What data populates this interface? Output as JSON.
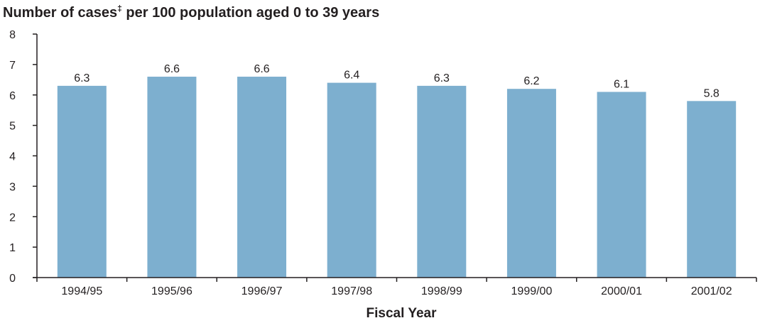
{
  "chart_data": {
    "type": "bar",
    "title": "Number of cases",
    "title_superscript": "‡",
    "title_suffix": " per 100 population aged 0 to 39 years",
    "xlabel": "Fiscal Year",
    "ylabel": "",
    "categories": [
      "1994/95",
      "1995/96",
      "1996/97",
      "1997/98",
      "1998/99",
      "1999/00",
      "2000/01",
      "2001/02"
    ],
    "values": [
      6.3,
      6.6,
      6.6,
      6.4,
      6.3,
      6.2,
      6.1,
      5.8
    ],
    "data_labels": [
      "6.3",
      "6.6",
      "6.6",
      "6.4",
      "6.3",
      "6.2",
      "6.1",
      "5.8"
    ],
    "ylim": [
      0,
      8
    ],
    "yticks": [
      0,
      1,
      2,
      3,
      4,
      5,
      6,
      7,
      8
    ],
    "grid": false,
    "legend": "none",
    "bar_color": "#7dafcf",
    "axis_color": "#231f20"
  }
}
